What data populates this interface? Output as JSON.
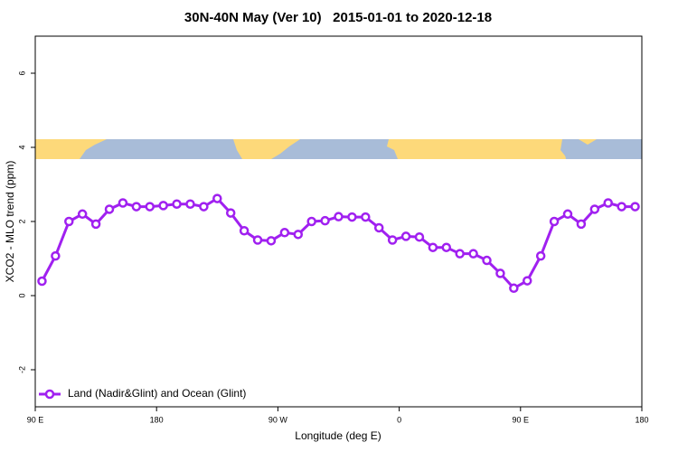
{
  "chart_data": {
    "type": "line",
    "title": "30N-40N May (Ver 10)   2015-01-01 to 2020-12-18",
    "x_label": "Longitude (deg E)",
    "y_label": "XCO2 - MLO trend (ppm)",
    "x": [
      95,
      105,
      115,
      125,
      135,
      145,
      155,
      165,
      175,
      185,
      195,
      205,
      215,
      225,
      235,
      245,
      255,
      265,
      275,
      285,
      295,
      305,
      315,
      325,
      335,
      345,
      355,
      365,
      375,
      385,
      395,
      405,
      415,
      425,
      435,
      445,
      455,
      465,
      475,
      485,
      495,
      505,
      515,
      525,
      535
    ],
    "series": [
      {
        "name": "Land (Nadir&Glint) and Ocean (Glint)",
        "color": "#a020f0",
        "values": [
          0.39,
          1.07,
          2.0,
          2.2,
          1.93,
          2.33,
          2.5,
          2.4,
          2.4,
          2.43,
          2.47,
          2.47,
          2.4,
          2.62,
          2.23,
          1.75,
          1.5,
          1.48,
          1.7,
          1.65,
          2.0,
          2.02,
          2.13,
          2.12,
          2.12,
          1.83,
          1.5,
          1.6,
          1.58,
          1.3,
          1.3,
          1.13,
          1.13,
          0.95,
          0.6,
          0.2,
          0.4,
          1.07,
          2.0,
          2.2,
          1.93,
          2.33,
          2.5,
          2.4,
          2.4
        ]
      }
    ],
    "xlim": [
      90,
      540
    ],
    "ylim": [
      -3,
      7
    ],
    "xticks": [
      {
        "value": 90,
        "label": "90 E"
      },
      180,
      {
        "value": 270,
        "label": "90 W"
      },
      {
        "value": 360,
        "label": "0"
      },
      {
        "value": 450,
        "label": "90 E"
      },
      {
        "value": 540,
        "label": "180"
      }
    ],
    "yticks": [
      -2,
      0,
      2,
      4,
      6
    ],
    "legend": "bottom-left"
  }
}
